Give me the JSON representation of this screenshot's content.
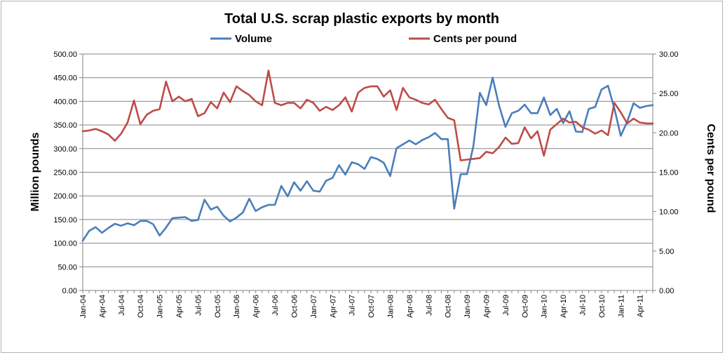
{
  "chart_data": {
    "type": "line",
    "title": "Total U.S. scrap plastic exports by month",
    "ylabel": "Million pounds",
    "y2label": "Cents per pound",
    "ylim": [
      0,
      500
    ],
    "y2lim": [
      0,
      30
    ],
    "yticks": [
      "0.00",
      "50.00",
      "100.00",
      "150.00",
      "200.00",
      "250.00",
      "300.00",
      "350.00",
      "400.00",
      "450.00",
      "500.00"
    ],
    "y2ticks": [
      "0.00",
      "5.00",
      "10.00",
      "15.00",
      "20.00",
      "25.00",
      "30.00"
    ],
    "xtick_labels": [
      "Jan-04",
      "Apr-04",
      "Jul-04",
      "Oct-04",
      "Jan-05",
      "Apr-05",
      "Jul-05",
      "Oct-05",
      "Jan-06",
      "Apr-06",
      "Jul-06",
      "Oct-06",
      "Jan-07",
      "Apr-07",
      "Jul-07",
      "Oct-07",
      "Jan-08",
      "Apr-08",
      "Jul-08",
      "Oct-08",
      "Jan-09",
      "Apr-09",
      "Jul-09",
      "Oct-09",
      "Jan-10",
      "Apr-10",
      "Jul-10",
      "Oct-10",
      "Jan-11",
      "Apr-11"
    ],
    "legend_position": "top",
    "grid": "horizontal",
    "x": [
      "Jan-04",
      "Feb-04",
      "Mar-04",
      "Apr-04",
      "May-04",
      "Jun-04",
      "Jul-04",
      "Aug-04",
      "Sep-04",
      "Oct-04",
      "Nov-04",
      "Dec-04",
      "Jan-05",
      "Feb-05",
      "Mar-05",
      "Apr-05",
      "May-05",
      "Jun-05",
      "Jul-05",
      "Aug-05",
      "Sep-05",
      "Oct-05",
      "Nov-05",
      "Dec-05",
      "Jan-06",
      "Feb-06",
      "Mar-06",
      "Apr-06",
      "May-06",
      "Jun-06",
      "Jul-06",
      "Aug-06",
      "Sep-06",
      "Oct-06",
      "Nov-06",
      "Dec-06",
      "Jan-07",
      "Feb-07",
      "Mar-07",
      "Apr-07",
      "May-07",
      "Jun-07",
      "Jul-07",
      "Aug-07",
      "Sep-07",
      "Oct-07",
      "Nov-07",
      "Dec-07",
      "Jan-08",
      "Feb-08",
      "Mar-08",
      "Apr-08",
      "May-08",
      "Jun-08",
      "Jul-08",
      "Aug-08",
      "Sep-08",
      "Oct-08",
      "Nov-08",
      "Dec-08",
      "Jan-09",
      "Feb-09",
      "Mar-09",
      "Apr-09",
      "May-09",
      "Jun-09",
      "Jul-09",
      "Aug-09",
      "Sep-09",
      "Oct-09",
      "Nov-09",
      "Dec-09",
      "Jan-10",
      "Feb-10",
      "Mar-10",
      "Apr-10",
      "May-10",
      "Jun-10",
      "Jul-10",
      "Aug-10",
      "Sep-10",
      "Oct-10",
      "Nov-10",
      "Dec-10",
      "Jan-11",
      "Feb-11",
      "Mar-11",
      "Apr-11",
      "May-11",
      "Jun-11"
    ],
    "series": [
      {
        "name": "Volume",
        "axis": "left",
        "color": "#4a7ebb",
        "values": [
          105,
          126,
          134,
          122,
          132,
          141,
          137,
          142,
          138,
          147,
          147,
          140,
          116,
          133,
          153,
          154,
          155,
          147,
          149,
          192,
          171,
          177,
          158,
          146,
          154,
          165,
          194,
          168,
          176,
          181,
          181,
          221,
          199,
          229,
          211,
          231,
          211,
          209,
          232,
          238,
          265,
          245,
          271,
          267,
          257,
          282,
          278,
          270,
          242,
          301,
          309,
          317,
          309,
          318,
          324,
          333,
          320,
          320,
          173,
          246,
          246,
          306,
          418,
          392,
          450,
          391,
          346,
          375,
          380,
          393,
          375,
          375,
          408,
          371,
          384,
          354,
          379,
          336,
          335,
          384,
          388,
          425,
          433,
          385,
          327,
          357,
          396,
          386,
          390,
          392
        ]
      },
      {
        "name": "Cents per pound",
        "axis": "right",
        "color": "#be4b48",
        "values": [
          20.2,
          20.3,
          20.5,
          20.2,
          19.8,
          19.0,
          19.9,
          21.3,
          24.1,
          21.1,
          22.3,
          22.8,
          23.0,
          26.5,
          24.0,
          24.6,
          24.0,
          24.3,
          22.1,
          22.5,
          23.9,
          23.1,
          25.1,
          23.9,
          25.9,
          25.3,
          24.8,
          24.0,
          23.5,
          27.9,
          23.8,
          23.5,
          23.8,
          23.8,
          23.1,
          24.2,
          23.8,
          22.8,
          23.3,
          22.9,
          23.5,
          24.5,
          22.7,
          25.1,
          25.7,
          25.9,
          25.9,
          24.6,
          25.4,
          22.9,
          25.7,
          24.5,
          24.2,
          23.8,
          23.6,
          24.2,
          23.0,
          21.9,
          21.6,
          16.5,
          16.6,
          16.7,
          16.8,
          17.6,
          17.4,
          18.2,
          19.4,
          18.6,
          18.7,
          20.7,
          19.3,
          20.2,
          17.1,
          20.4,
          21.1,
          21.8,
          21.3,
          21.4,
          20.7,
          20.4,
          19.9,
          20.3,
          19.7,
          23.8,
          22.6,
          21.2,
          21.8,
          21.3,
          21.2,
          21.2
        ]
      }
    ]
  }
}
